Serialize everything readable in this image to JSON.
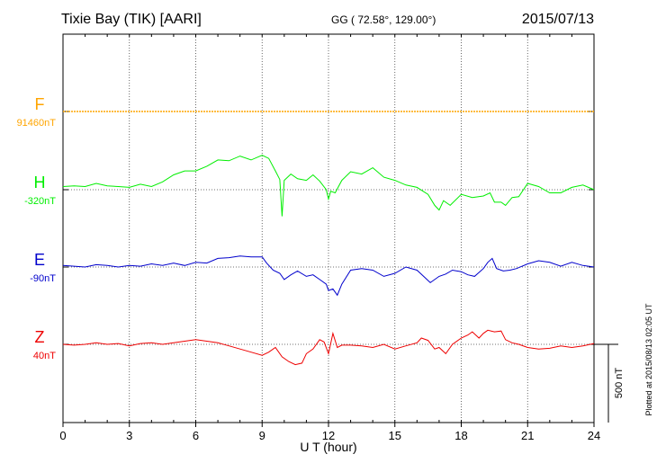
{
  "header": {
    "station": "Tixie Bay (TIK)  [AARI]",
    "coords": "GG ( 72.58°, 129.00°)",
    "date": "2015/07/13"
  },
  "plotted_note": "Plotted at 2015/08/13 02:05 UT",
  "colors": {
    "F": "#ffa500",
    "H": "#00ee00",
    "E": "#0000cc",
    "Z": "#ee0000",
    "axis": "#000000",
    "grid": "#444444"
  },
  "chart_data": {
    "type": "line",
    "xlabel": "U T (hour)",
    "xlim": [
      0,
      24
    ],
    "xticks": [
      0,
      3,
      6,
      9,
      12,
      15,
      18,
      21,
      24
    ],
    "grid": true,
    "scale_bar_label": "500 nT",
    "series": [
      {
        "name": "F",
        "baseline_label": "91460nT",
        "x": [
          0,
          2,
          4,
          6,
          8,
          10,
          12,
          14,
          16,
          18,
          20,
          22,
          24
        ],
        "y": [
          0,
          0,
          0,
          0,
          0,
          0,
          0,
          0,
          0,
          0,
          0,
          0,
          0
        ]
      },
      {
        "name": "H",
        "baseline_label": "-320nT",
        "x": [
          0,
          0.5,
          1,
          1.5,
          2,
          2.5,
          3,
          3.5,
          4,
          4.5,
          5,
          5.5,
          6,
          6.5,
          7,
          7.5,
          8,
          8.5,
          9,
          9.3,
          9.6,
          9.8,
          9.9,
          10,
          10.3,
          10.6,
          11,
          11.3,
          11.6,
          11.9,
          12,
          12.1,
          12.3,
          12.6,
          13,
          13.5,
          14,
          14.5,
          15,
          15.5,
          16,
          16.5,
          16.8,
          17,
          17.2,
          17.5,
          18,
          18.5,
          19,
          19.3,
          19.5,
          19.8,
          20,
          20.3,
          20.6,
          21,
          21.5,
          22,
          22.5,
          23,
          23.5,
          24
        ],
        "y": [
          20,
          25,
          20,
          40,
          25,
          20,
          15,
          35,
          20,
          50,
          95,
          120,
          120,
          150,
          190,
          185,
          215,
          190,
          220,
          200,
          120,
          65,
          -170,
          60,
          100,
          70,
          60,
          95,
          55,
          0,
          -60,
          -10,
          -20,
          60,
          115,
          100,
          140,
          80,
          60,
          30,
          15,
          -30,
          -100,
          -130,
          -70,
          -100,
          -30,
          -50,
          -40,
          -20,
          -80,
          -80,
          -100,
          -50,
          -45,
          40,
          20,
          -20,
          -20,
          15,
          30,
          0
        ]
      },
      {
        "name": "E",
        "baseline_label": "-90nT",
        "x": [
          0,
          0.5,
          1,
          1.5,
          2,
          2.5,
          3,
          3.5,
          4,
          4.5,
          5,
          5.5,
          6,
          6.5,
          7,
          7.5,
          8,
          8.5,
          9,
          9.2,
          9.5,
          9.8,
          10,
          10.3,
          10.6,
          11,
          11.3,
          11.6,
          11.9,
          12,
          12.2,
          12.4,
          12.6,
          13,
          13.5,
          14,
          14.5,
          15,
          15.5,
          16,
          16.3,
          16.6,
          17,
          17.3,
          17.6,
          18,
          18.3,
          18.6,
          19,
          19.2,
          19.4,
          19.6,
          19.9,
          20.2,
          20.5,
          21,
          21.5,
          22,
          22.5,
          23,
          23.5,
          24
        ],
        "y": [
          10,
          5,
          0,
          15,
          10,
          0,
          10,
          5,
          20,
          10,
          25,
          10,
          30,
          25,
          55,
          60,
          70,
          65,
          65,
          25,
          -20,
          -40,
          -80,
          -50,
          -25,
          -60,
          -50,
          -80,
          -110,
          -150,
          -140,
          -180,
          -110,
          -20,
          -10,
          -20,
          -60,
          -40,
          0,
          -20,
          -60,
          -100,
          -60,
          -45,
          -20,
          -30,
          -50,
          -60,
          -10,
          30,
          55,
          -10,
          -25,
          -20,
          -10,
          20,
          40,
          30,
          5,
          30,
          10,
          0
        ]
      },
      {
        "name": "Z",
        "baseline_label": "40nT",
        "x": [
          0,
          0.5,
          1,
          1.5,
          2,
          2.5,
          3,
          3.5,
          4,
          4.5,
          5,
          5.5,
          6,
          6.5,
          7,
          7.5,
          8,
          8.5,
          9,
          9.3,
          9.6,
          9.9,
          10.2,
          10.5,
          10.8,
          11,
          11.3,
          11.6,
          11.8,
          12,
          12.2,
          12.4,
          12.6,
          13,
          13.5,
          14,
          14.5,
          15,
          15.5,
          16,
          16.2,
          16.5,
          16.8,
          17,
          17.3,
          17.6,
          18,
          18.3,
          18.5,
          18.8,
          19,
          19.2,
          19.5,
          19.8,
          20,
          20.3,
          20.6,
          21,
          21.5,
          22,
          22.5,
          23,
          23.5,
          24
        ],
        "y": [
          0,
          -5,
          0,
          10,
          0,
          5,
          -10,
          5,
          10,
          0,
          10,
          20,
          30,
          20,
          10,
          -10,
          -30,
          -50,
          -70,
          -50,
          -20,
          -80,
          -110,
          -130,
          -120,
          -60,
          -30,
          30,
          15,
          -60,
          70,
          -20,
          -5,
          -5,
          -10,
          -20,
          0,
          -30,
          -10,
          10,
          40,
          25,
          -30,
          -20,
          -60,
          0,
          40,
          60,
          80,
          40,
          70,
          90,
          80,
          85,
          30,
          10,
          0,
          -20,
          -30,
          -25,
          -10,
          -20,
          -10,
          5
        ]
      }
    ]
  }
}
